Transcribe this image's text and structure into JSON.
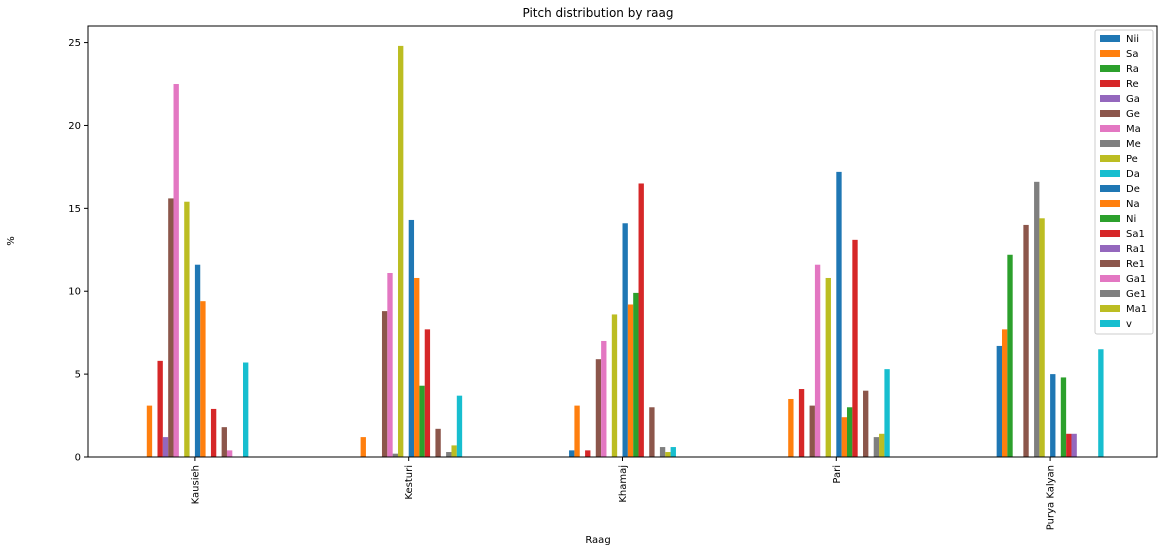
{
  "chart_data": {
    "type": "bar",
    "title": "Pitch distribution by raag",
    "xlabel": "Raag",
    "ylabel": "%",
    "ylim": [
      0,
      26
    ],
    "yticks": [
      0,
      5,
      10,
      15,
      20,
      25
    ],
    "legend_position": "top-right",
    "grid": false,
    "categories": [
      "Kausieh",
      "Kesturi",
      "Khamaj",
      "Pari",
      "Purya Kalyan"
    ],
    "series": [
      {
        "name": "Nii",
        "color": "#1f77b4",
        "values": [
          0,
          0,
          0.4,
          0,
          6.7
        ]
      },
      {
        "name": "Sa",
        "color": "#ff7f0e",
        "values": [
          3.1,
          1.2,
          3.1,
          3.5,
          7.7
        ]
      },
      {
        "name": "Ra",
        "color": "#2ca02c",
        "values": [
          0,
          0,
          0,
          0,
          12.2
        ]
      },
      {
        "name": "Re",
        "color": "#d62728",
        "values": [
          5.8,
          0,
          0.4,
          4.1,
          0
        ]
      },
      {
        "name": "Ga",
        "color": "#9467bd",
        "values": [
          1.2,
          0,
          0,
          0,
          0
        ]
      },
      {
        "name": "Ge",
        "color": "#8c564b",
        "values": [
          15.6,
          8.8,
          5.9,
          3.1,
          14.0
        ]
      },
      {
        "name": "Ma",
        "color": "#e377c2",
        "values": [
          22.5,
          11.1,
          7.0,
          11.6,
          0
        ]
      },
      {
        "name": "Me",
        "color": "#7f7f7f",
        "values": [
          0,
          0.2,
          0,
          0,
          16.6
        ]
      },
      {
        "name": "Pe",
        "color": "#bcbd22",
        "values": [
          15.4,
          24.8,
          8.6,
          10.8,
          14.4
        ]
      },
      {
        "name": "Da",
        "color": "#17becf",
        "values": [
          0,
          0,
          0,
          0,
          0
        ]
      },
      {
        "name": "De",
        "color": "#1f77b4",
        "values": [
          11.6,
          14.3,
          14.1,
          17.2,
          5.0
        ]
      },
      {
        "name": "Na",
        "color": "#ff7f0e",
        "values": [
          9.4,
          10.8,
          9.2,
          2.4,
          0
        ]
      },
      {
        "name": "Ni",
        "color": "#2ca02c",
        "values": [
          0,
          4.3,
          9.9,
          3.0,
          4.8
        ]
      },
      {
        "name": "Sa1",
        "color": "#d62728",
        "values": [
          2.9,
          7.7,
          16.5,
          13.1,
          1.4
        ]
      },
      {
        "name": "Ra1",
        "color": "#9467bd",
        "values": [
          0,
          0,
          0,
          0,
          1.4
        ]
      },
      {
        "name": "Re1",
        "color": "#8c564b",
        "values": [
          1.8,
          1.7,
          3.0,
          4.0,
          0
        ]
      },
      {
        "name": "Ga1",
        "color": "#e377c2",
        "values": [
          0.4,
          0,
          0,
          0,
          0
        ]
      },
      {
        "name": "Ge1",
        "color": "#7f7f7f",
        "values": [
          0,
          0.3,
          0.6,
          1.2,
          0
        ]
      },
      {
        "name": "Ma1",
        "color": "#bcbd22",
        "values": [
          0,
          0.7,
          0.3,
          1.4,
          0
        ]
      },
      {
        "name": "v",
        "color": "#17becf",
        "values": [
          5.7,
          3.7,
          0.6,
          5.3,
          6.5
        ]
      }
    ]
  }
}
